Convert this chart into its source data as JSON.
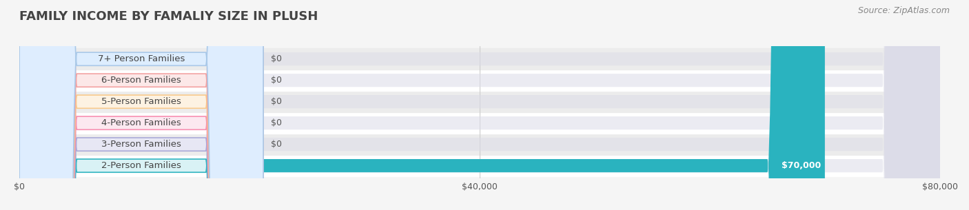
{
  "title": "FAMILY INCOME BY FAMALIY SIZE IN PLUSH",
  "source": "Source: ZipAtlas.com",
  "categories": [
    "2-Person Families",
    "3-Person Families",
    "4-Person Families",
    "5-Person Families",
    "6-Person Families",
    "7+ Person Families"
  ],
  "values": [
    70000,
    0,
    0,
    0,
    0,
    0
  ],
  "bar_colors": [
    "#2ab3bf",
    "#a8a8d8",
    "#f78db0",
    "#f9c98a",
    "#f4a0a0",
    "#a8c8e8"
  ],
  "label_bg_colors": [
    "#e0f5f7",
    "#e8e8f5",
    "#fde8f0",
    "#fef3e2",
    "#fde8e8",
    "#ddeeff"
  ],
  "bar_value_labels": [
    "$70,000",
    "$0",
    "$0",
    "$0",
    "$0",
    "$0"
  ],
  "xlim": [
    0,
    80000
  ],
  "xticks": [
    0,
    40000,
    80000
  ],
  "xtick_labels": [
    "$0",
    "$40,000",
    "$80,000"
  ],
  "background_color": "#f5f5f5",
  "title_color": "#444444",
  "title_fontsize": 13,
  "label_fontsize": 9.5,
  "value_fontsize": 9,
  "source_fontsize": 9
}
